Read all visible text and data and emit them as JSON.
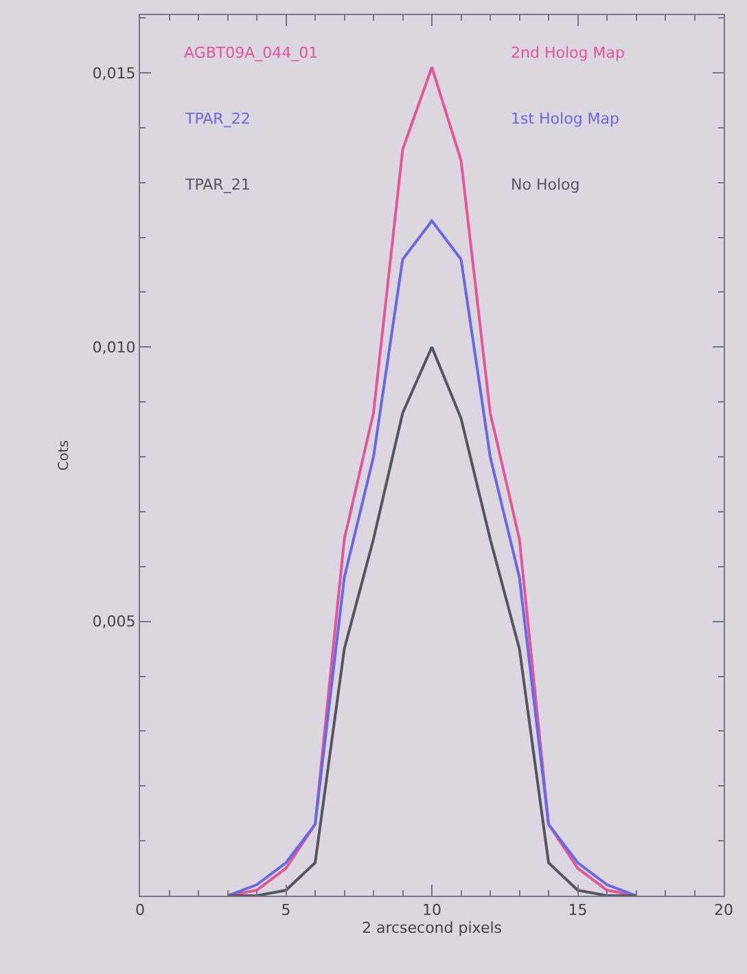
{
  "chart_data": {
    "type": "line",
    "xlabel": "2 arcsecond pixels",
    "ylabel": "Cots",
    "x": [
      3,
      4,
      5,
      6,
      7,
      8,
      9,
      10,
      11,
      12,
      13,
      14,
      15,
      16,
      17
    ],
    "series": [
      {
        "name": "AGBT09A_044_01",
        "color": "#e0589a",
        "values": [
          0,
          0.0001,
          0.0005,
          0.0013,
          0.0065,
          0.0088,
          0.0136,
          0.0151,
          0.0134,
          0.0088,
          0.0065,
          0.0013,
          0.0005,
          0.0001,
          0
        ]
      },
      {
        "name": "TPAR_22",
        "color": "#6a6ae0",
        "values": [
          0,
          0.0002,
          0.0006,
          0.0013,
          0.0058,
          0.008,
          0.0116,
          0.0123,
          0.0116,
          0.008,
          0.0058,
          0.0013,
          0.0006,
          0.0002,
          0
        ]
      },
      {
        "name": "TPAR_21",
        "color": "#555560",
        "values": [
          0,
          0,
          0.0001,
          0.0006,
          0.0045,
          0.0065,
          0.0088,
          0.01,
          0.0087,
          0.0065,
          0.0045,
          0.0006,
          0.0001,
          0,
          0
        ]
      }
    ],
    "annotations": [
      "2nd Holog Map",
      "1st Holog Map",
      "No Holog"
    ],
    "xlim": [
      0,
      20
    ],
    "xticks": [
      0,
      5,
      10,
      15,
      20
    ],
    "ylim": [
      0,
      0.01605
    ],
    "yticks": [
      {
        "value": 0.005,
        "label": "0,005"
      },
      {
        "value": 0.01,
        "label": "0,010"
      },
      {
        "value": 0.015,
        "label": "0,015"
      }
    ],
    "grid": false,
    "legend": "top left",
    "marker": "none",
    "line_style": "solid"
  }
}
